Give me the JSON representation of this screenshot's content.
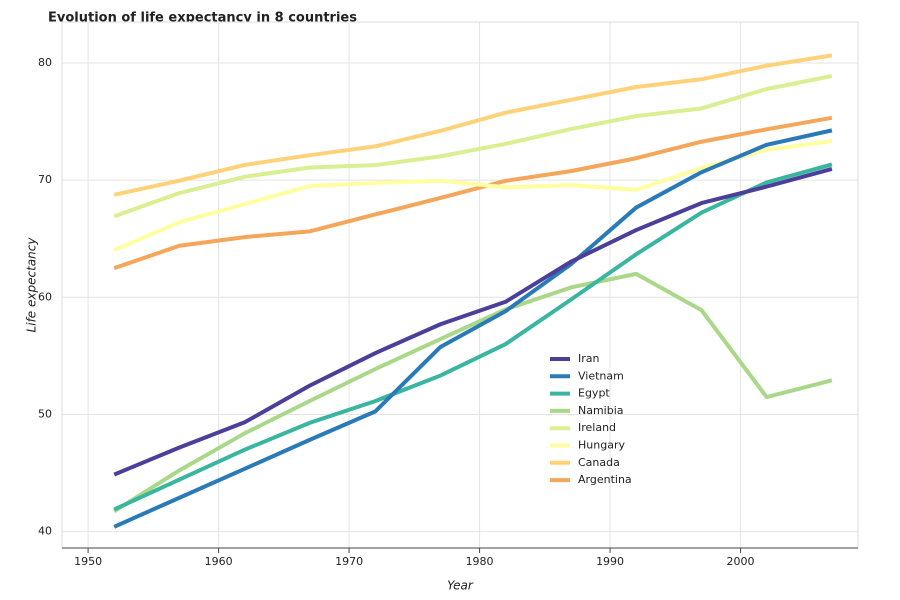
{
  "chart_data": {
    "type": "line",
    "title": "Evolution of life expectancy in 8 countries",
    "x_label": "Year",
    "y_label": "Life expectancy",
    "x": [
      1952,
      1957,
      1962,
      1967,
      1972,
      1977,
      1982,
      1987,
      1992,
      1997,
      2002,
      2007
    ],
    "series": [
      {
        "name": "Iran",
        "color": "#4b3f9a",
        "values": [
          44.87,
          47.18,
          49.33,
          52.47,
          55.23,
          57.7,
          59.62,
          63.04,
          65.74,
          68.04,
          69.45,
          70.96
        ]
      },
      {
        "name": "Vietnam",
        "color": "#2a7ab8",
        "values": [
          40.41,
          42.89,
          45.36,
          47.84,
          50.25,
          55.76,
          58.82,
          62.82,
          67.66,
          70.67,
          73.02,
          74.25
        ]
      },
      {
        "name": "Egypt",
        "color": "#3ab5a0",
        "values": [
          41.89,
          44.44,
          46.99,
          49.29,
          51.14,
          53.32,
          56.01,
          59.8,
          63.67,
          67.22,
          69.81,
          71.34
        ]
      },
      {
        "name": "Namibia",
        "color": "#a8d888",
        "values": [
          41.73,
          45.23,
          48.39,
          51.16,
          53.87,
          56.44,
          58.97,
          60.84,
          62.0,
          58.91,
          51.48,
          52.91
        ]
      },
      {
        "name": "Ireland",
        "color": "#d9ef92",
        "values": [
          66.91,
          68.9,
          70.29,
          71.08,
          71.28,
          72.03,
          73.1,
          74.36,
          75.47,
          76.12,
          77.78,
          78.89
        ]
      },
      {
        "name": "Hungary",
        "color": "#ffffa0",
        "values": [
          64.03,
          66.41,
          67.96,
          69.5,
          69.76,
          69.95,
          69.39,
          69.58,
          69.17,
          71.04,
          72.59,
          73.34
        ]
      },
      {
        "name": "Canada",
        "color": "#ffd27a",
        "values": [
          68.75,
          69.96,
          71.3,
          72.13,
          72.88,
          74.21,
          75.76,
          76.86,
          77.95,
          78.61,
          79.77,
          80.65
        ]
      },
      {
        "name": "Argentina",
        "color": "#f4a65a",
        "values": [
          62.49,
          64.4,
          65.14,
          65.63,
          67.07,
          68.48,
          69.94,
          70.77,
          71.87,
          73.28,
          74.34,
          75.32
        ]
      }
    ],
    "xlim": [
      1948,
      2009
    ],
    "ylim": [
      38.6,
      83.5
    ],
    "xticks": [
      1950,
      1960,
      1970,
      1980,
      1990,
      2000
    ],
    "yticks": [
      40,
      50,
      60,
      70,
      80
    ],
    "grid": true,
    "legend": "lower right"
  }
}
